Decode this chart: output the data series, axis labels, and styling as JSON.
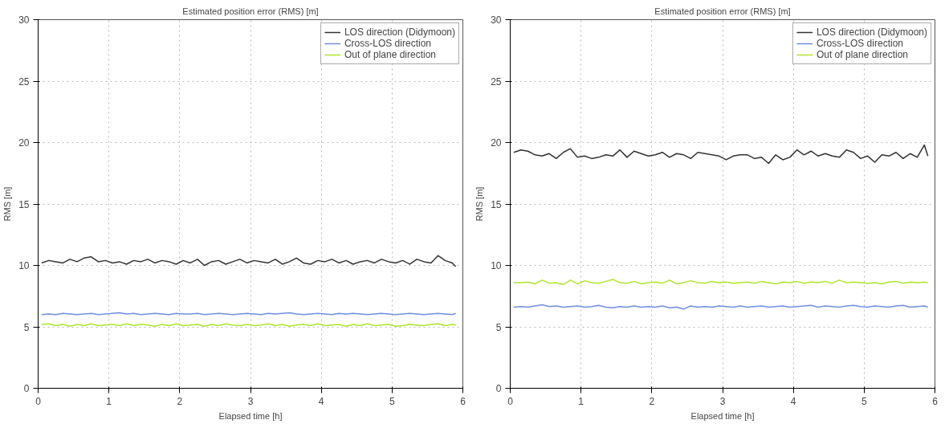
{
  "chart_data": [
    {
      "type": "line",
      "title": "Estimated position error (RMS) [m]",
      "xlabel": "Elapsed time [h]",
      "ylabel": "RMS [m]",
      "x": [
        0.05,
        0.15,
        0.25,
        0.35,
        0.45,
        0.55,
        0.65,
        0.75,
        0.85,
        0.95,
        1.05,
        1.15,
        1.25,
        1.35,
        1.45,
        1.55,
        1.65,
        1.75,
        1.85,
        1.95,
        2.05,
        2.15,
        2.25,
        2.35,
        2.45,
        2.55,
        2.65,
        2.75,
        2.85,
        2.95,
        3.05,
        3.15,
        3.25,
        3.35,
        3.45,
        3.55,
        3.65,
        3.75,
        3.85,
        3.95,
        4.05,
        4.15,
        4.25,
        4.35,
        4.45,
        4.55,
        4.65,
        4.75,
        4.85,
        4.95,
        5.05,
        5.15,
        5.25,
        5.35,
        5.45,
        5.55,
        5.65,
        5.75,
        5.85,
        5.9
      ],
      "series": [
        {
          "name": "LOS direction (Didymoon)",
          "color": "#333333",
          "values": [
            10.2,
            10.4,
            10.3,
            10.2,
            10.5,
            10.3,
            10.6,
            10.7,
            10.3,
            10.4,
            10.2,
            10.3,
            10.1,
            10.4,
            10.3,
            10.5,
            10.2,
            10.4,
            10.3,
            10.1,
            10.4,
            10.2,
            10.5,
            10.0,
            10.3,
            10.4,
            10.1,
            10.3,
            10.5,
            10.2,
            10.4,
            10.3,
            10.2,
            10.5,
            10.1,
            10.3,
            10.6,
            10.2,
            10.1,
            10.4,
            10.3,
            10.5,
            10.2,
            10.4,
            10.1,
            10.3,
            10.4,
            10.2,
            10.5,
            10.3,
            10.2,
            10.4,
            10.1,
            10.5,
            10.3,
            10.2,
            10.8,
            10.4,
            10.2,
            9.9
          ]
        },
        {
          "name": "Cross-LOS direction",
          "color": "#6f8fe6",
          "values": [
            6.0,
            6.05,
            6.0,
            6.1,
            6.05,
            6.0,
            6.05,
            6.1,
            6.0,
            6.05,
            6.1,
            6.15,
            6.05,
            6.1,
            6.0,
            6.05,
            6.1,
            6.05,
            6.0,
            6.1,
            6.05,
            6.05,
            6.1,
            6.0,
            6.05,
            6.1,
            6.05,
            6.0,
            6.05,
            6.1,
            6.05,
            6.0,
            6.1,
            6.05,
            6.1,
            6.15,
            6.05,
            6.0,
            6.05,
            6.1,
            6.05,
            6.0,
            6.1,
            6.05,
            6.1,
            6.05,
            6.0,
            6.05,
            6.1,
            6.05,
            6.0,
            6.05,
            6.1,
            6.05,
            6.0,
            6.05,
            6.1,
            6.05,
            6.0,
            6.1
          ]
        },
        {
          "name": "Out of plane direction",
          "color": "#aee62a",
          "values": [
            5.2,
            5.25,
            5.1,
            5.2,
            5.05,
            5.2,
            5.1,
            5.25,
            5.1,
            5.15,
            5.2,
            5.1,
            5.25,
            5.1,
            5.2,
            5.15,
            5.05,
            5.2,
            5.1,
            5.25,
            5.1,
            5.15,
            5.2,
            5.05,
            5.2,
            5.1,
            5.25,
            5.15,
            5.1,
            5.2,
            5.1,
            5.15,
            5.25,
            5.1,
            5.2,
            5.05,
            5.15,
            5.2,
            5.1,
            5.25,
            5.1,
            5.15,
            5.2,
            5.05,
            5.2,
            5.1,
            5.25,
            5.1,
            5.15,
            5.2,
            5.05,
            5.1,
            5.2,
            5.15,
            5.1,
            5.2,
            5.25,
            5.1,
            5.2,
            5.15
          ]
        }
      ],
      "xlim": [
        0,
        6
      ],
      "ylim": [
        0,
        30
      ],
      "xticks": [
        0,
        1,
        2,
        3,
        4,
        5,
        6
      ],
      "yticks": [
        0,
        5,
        10,
        15,
        20,
        25,
        30
      ],
      "grid": true,
      "legend": "top right"
    },
    {
      "type": "line",
      "title": "Estimated position error (RMS) [m]",
      "xlabel": "Elapsed time [h]",
      "ylabel": "RMS [m]",
      "x": [
        0.05,
        0.15,
        0.25,
        0.35,
        0.45,
        0.55,
        0.65,
        0.75,
        0.85,
        0.95,
        1.05,
        1.15,
        1.25,
        1.35,
        1.45,
        1.55,
        1.65,
        1.75,
        1.85,
        1.95,
        2.05,
        2.15,
        2.25,
        2.35,
        2.45,
        2.55,
        2.65,
        2.75,
        2.85,
        2.95,
        3.05,
        3.15,
        3.25,
        3.35,
        3.45,
        3.55,
        3.65,
        3.75,
        3.85,
        3.95,
        4.05,
        4.15,
        4.25,
        4.35,
        4.45,
        4.55,
        4.65,
        4.75,
        4.85,
        4.95,
        5.05,
        5.15,
        5.25,
        5.35,
        5.45,
        5.55,
        5.65,
        5.75,
        5.85,
        5.9
      ],
      "series": [
        {
          "name": "LOS direction (Didymoon)",
          "color": "#333333",
          "values": [
            19.2,
            19.4,
            19.3,
            19.0,
            18.9,
            19.1,
            18.7,
            19.2,
            19.5,
            18.8,
            18.9,
            18.7,
            18.8,
            19.0,
            18.9,
            19.4,
            18.8,
            19.3,
            19.1,
            18.9,
            19.0,
            19.2,
            18.8,
            19.1,
            19.0,
            18.7,
            19.2,
            19.1,
            19.0,
            18.9,
            18.6,
            18.9,
            19.0,
            19.0,
            18.7,
            18.8,
            18.3,
            19.0,
            18.6,
            18.8,
            19.4,
            19.0,
            19.3,
            18.9,
            19.1,
            18.9,
            18.8,
            19.4,
            19.2,
            18.7,
            18.9,
            18.4,
            19.0,
            18.9,
            19.2,
            18.7,
            19.1,
            18.8,
            19.8,
            18.9
          ]
        },
        {
          "name": "Cross-LOS direction",
          "color": "#6f8fe6",
          "values": [
            6.6,
            6.65,
            6.6,
            6.7,
            6.8,
            6.65,
            6.7,
            6.6,
            6.65,
            6.7,
            6.6,
            6.65,
            6.75,
            6.6,
            6.55,
            6.65,
            6.6,
            6.7,
            6.6,
            6.65,
            6.6,
            6.7,
            6.55,
            6.6,
            6.45,
            6.7,
            6.6,
            6.65,
            6.6,
            6.7,
            6.65,
            6.6,
            6.7,
            6.6,
            6.65,
            6.7,
            6.6,
            6.65,
            6.7,
            6.6,
            6.65,
            6.7,
            6.75,
            6.6,
            6.7,
            6.65,
            6.6,
            6.7,
            6.75,
            6.65,
            6.6,
            6.7,
            6.65,
            6.6,
            6.7,
            6.75,
            6.6,
            6.65,
            6.7,
            6.6
          ]
        },
        {
          "name": "Out of plane direction",
          "color": "#aee62a",
          "values": [
            8.6,
            8.6,
            8.65,
            8.5,
            8.8,
            8.55,
            8.6,
            8.45,
            8.8,
            8.5,
            8.75,
            8.6,
            8.55,
            8.7,
            8.85,
            8.6,
            8.55,
            8.7,
            8.5,
            8.6,
            8.65,
            8.55,
            8.8,
            8.5,
            8.6,
            8.75,
            8.6,
            8.55,
            8.7,
            8.6,
            8.65,
            8.55,
            8.6,
            8.65,
            8.55,
            8.7,
            8.6,
            8.5,
            8.65,
            8.6,
            8.7,
            8.55,
            8.65,
            8.6,
            8.7,
            8.55,
            8.8,
            8.6,
            8.65,
            8.6,
            8.55,
            8.6,
            8.5,
            8.65,
            8.7,
            8.55,
            8.65,
            8.6,
            8.65,
            8.6
          ]
        }
      ],
      "xlim": [
        0,
        6
      ],
      "ylim": [
        0,
        30
      ],
      "xticks": [
        0,
        1,
        2,
        3,
        4,
        5,
        6
      ],
      "yticks": [
        0,
        5,
        10,
        15,
        20,
        25,
        30
      ],
      "grid": true,
      "legend": "top right"
    }
  ]
}
